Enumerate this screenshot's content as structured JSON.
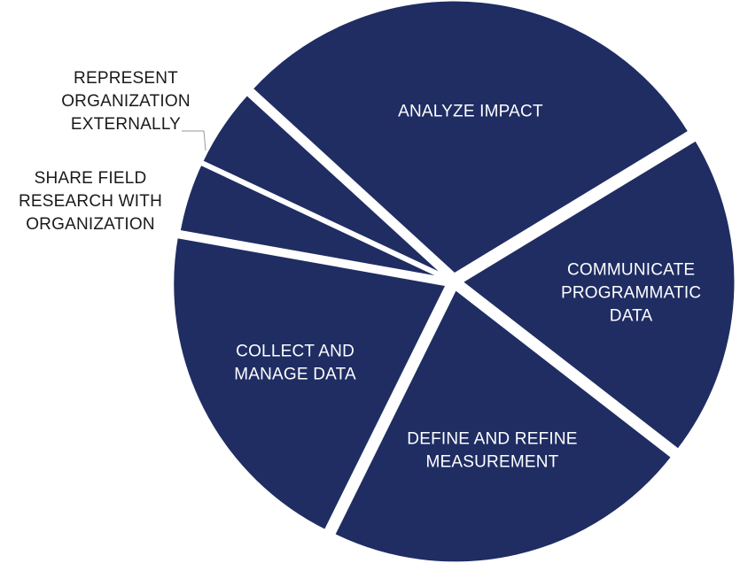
{
  "chart_data": {
    "type": "pie",
    "title": "",
    "legend": "none",
    "label_placement": "inside, with callout lines for the two smallest slices",
    "colors": {
      "slice_fill": "#1f2d63",
      "slice_border": "#ffffff",
      "inside_label": "#ffffff",
      "outside_label": "#1a1a1a",
      "leader_line": "#9a9a9a",
      "background": "#ffffff"
    },
    "slices": [
      {
        "label_lines": [
          "ANALYZE IMPACT"
        ],
        "value": 29.5
      },
      {
        "label_lines": [
          "COMMUNICATE",
          "PROGRAMMATIC",
          "DATA"
        ],
        "value": 19.2
      },
      {
        "label_lines": [
          "DEFINE AND REFINE",
          "MEASUREMENT"
        ],
        "value": 21.8
      },
      {
        "label_lines": [
          "COLLECT AND",
          "MANAGE DATA"
        ],
        "value": 20.5
      },
      {
        "label_lines": [
          "SHARE FIELD",
          "RESEARCH WITH",
          "ORGANIZATION"
        ],
        "value": 4.2
      },
      {
        "label_lines": [
          "REPRESENT",
          "ORGANIZATION",
          "EXTERNALLY"
        ],
        "value": 4.8
      }
    ]
  }
}
